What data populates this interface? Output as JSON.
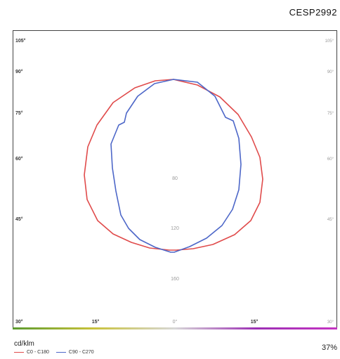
{
  "header": {
    "code": "CESP2992"
  },
  "chart_data": {
    "type": "line",
    "title": "",
    "angle_labels_left": [
      "105°",
      "90°",
      "75°",
      "60°",
      "45°",
      "30°"
    ],
    "angle_labels_right": [
      "105°",
      "90°",
      "75°",
      "60°",
      "45°",
      "30°"
    ],
    "angle_labels_bottom": [
      "15°",
      "0°",
      "15°"
    ],
    "ring_labels": [
      "80",
      "120",
      "160"
    ],
    "series": [
      {
        "name": "C0 - C180",
        "color": "#e04b4b",
        "values": [
          [
            246,
            112
          ],
          [
            280,
            120
          ],
          [
            312,
            137
          ],
          [
            338,
            162
          ],
          [
            357,
            194
          ],
          [
            369,
            223
          ],
          [
            373,
            254
          ],
          [
            369,
            287
          ],
          [
            356,
            313
          ],
          [
            333,
            333
          ],
          [
            302,
            347
          ],
          [
            274,
            353
          ],
          [
            250,
            355
          ],
          [
            240,
            355
          ],
          [
            212,
            352
          ],
          [
            186,
            344
          ],
          [
            160,
            332
          ],
          [
            138,
            313
          ],
          [
            123,
            283
          ],
          [
            119,
            248
          ],
          [
            124,
            208
          ],
          [
            137,
            177
          ],
          [
            160,
            145
          ],
          [
            191,
            124
          ],
          [
            220,
            114
          ],
          [
            246,
            112
          ]
        ]
      },
      {
        "name": "C90 - C270",
        "color": "#4d67c8",
        "values": [
          [
            246,
            112
          ],
          [
            280,
            116
          ],
          [
            305,
            136
          ],
          [
            320,
            166
          ],
          [
            331,
            171
          ],
          [
            339,
            196
          ],
          [
            342,
            233
          ],
          [
            339,
            269
          ],
          [
            330,
            297
          ],
          [
            315,
            320
          ],
          [
            293,
            338
          ],
          [
            269,
            350
          ],
          [
            247,
            358
          ],
          [
            242,
            358
          ],
          [
            220,
            351
          ],
          [
            198,
            340
          ],
          [
            182,
            324
          ],
          [
            171,
            305
          ],
          [
            164,
            271
          ],
          [
            159,
            238
          ],
          [
            157,
            204
          ],
          [
            168,
            177
          ],
          [
            176,
            173
          ],
          [
            179,
            160
          ],
          [
            195,
            136
          ],
          [
            219,
            118
          ],
          [
            246,
            112
          ]
        ]
      }
    ],
    "unit": "cd/klm",
    "efficiency": "37%"
  }
}
